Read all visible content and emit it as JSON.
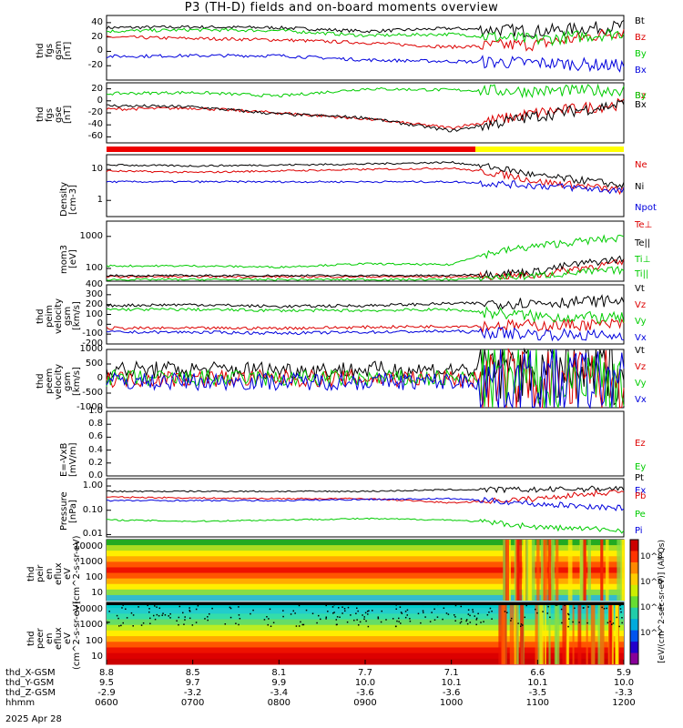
{
  "title": "P3 (TH-D) fields and on-board moments overview",
  "date": "2025 Apr 28",
  "colorbar_label": "[eV/(cm^2-sec-sr-eV)] (All Qs)",
  "colorbar_ticks": [
    "10^8",
    "10^6",
    "10^4",
    "10^2"
  ],
  "chart_data": [
    {
      "type": "line",
      "name": "fgs_gsm",
      "ylabel": "thd fgs gsm [nT]",
      "ylim": [
        -40,
        50
      ],
      "yticks": [
        40,
        20,
        0,
        -20
      ],
      "x": [
        0,
        1,
        2,
        3,
        4,
        5,
        6
      ],
      "series": [
        {
          "name": "Bt",
          "color": "#000000",
          "values": [
            33,
            34,
            33,
            28,
            32,
            28,
            35
          ]
        },
        {
          "name": "Bz",
          "color": "#dd0000",
          "values": [
            20,
            18,
            16,
            12,
            6,
            10,
            28
          ]
        },
        {
          "name": "By",
          "color": "#00cc00",
          "values": [
            28,
            30,
            29,
            22,
            24,
            16,
            26
          ]
        },
        {
          "name": "Bx",
          "color": "#0000dd",
          "values": [
            -7,
            -6,
            -6,
            -12,
            -14,
            -16,
            -20
          ]
        }
      ]
    },
    {
      "type": "line",
      "name": "fgs_gse",
      "ylabel": "thd fgs gse [nT]",
      "ylim": [
        -70,
        30
      ],
      "yticks": [
        20,
        0,
        -20,
        -40,
        -60
      ],
      "series": [
        {
          "name": "Bz",
          "color": "#dd0000",
          "values": [
            -14,
            -12,
            -20,
            -30,
            -45,
            -20,
            -5
          ]
        },
        {
          "name": "By",
          "color": "#00cc00",
          "values": [
            12,
            14,
            8,
            20,
            18,
            16,
            18
          ]
        },
        {
          "name": "Bx",
          "color": "#000000",
          "values": [
            -8,
            -10,
            -22,
            -28,
            -50,
            -25,
            -5
          ]
        }
      ]
    },
    {
      "type": "line",
      "name": "density",
      "ylabel": "Density [cm-3]",
      "ylim": [
        0.3,
        30
      ],
      "scale": "log",
      "yticks": [
        "10",
        "1"
      ],
      "series": [
        {
          "name": "Ne",
          "color": "#dd0000",
          "values": [
            9,
            8,
            9,
            10,
            11,
            4,
            2
          ]
        },
        {
          "name": "Ni",
          "color": "#000000",
          "values": [
            14,
            13,
            14,
            15,
            17,
            6,
            3
          ]
        },
        {
          "name": "Npot",
          "color": "#0000dd",
          "values": [
            4,
            4,
            4,
            4,
            4,
            3,
            2
          ]
        }
      ]
    },
    {
      "type": "line",
      "name": "temperature",
      "ylabel": "mom3 [eV]",
      "ylim": [
        40,
        3000
      ],
      "scale": "log",
      "yticks": [
        "1000",
        "100"
      ],
      "series": [
        {
          "name": "Te⊥",
          "color": "#dd0000",
          "values": [
            55,
            55,
            55,
            55,
            55,
            60,
            150
          ]
        },
        {
          "name": "Te||",
          "color": "#000000",
          "values": [
            60,
            60,
            60,
            60,
            60,
            80,
            200
          ]
        },
        {
          "name": "Ti⊥",
          "color": "#00cc00",
          "values": [
            120,
            120,
            110,
            140,
            130,
            500,
            900
          ]
        },
        {
          "name": "Ti||",
          "color": "#00cc00",
          "values": [
            45,
            45,
            45,
            45,
            45,
            60,
            90
          ]
        }
      ]
    },
    {
      "type": "line",
      "name": "peim_velocity",
      "ylabel": "thd peim velocity gsm [km/s]",
      "ylim": [
        -200,
        400
      ],
      "yticks": [
        400,
        300,
        200,
        100,
        0,
        -100,
        -200
      ],
      "series": [
        {
          "name": "Vt",
          "color": "#000000",
          "values": [
            190,
            200,
            180,
            190,
            210,
            220,
            240
          ]
        },
        {
          "name": "Vz",
          "color": "#dd0000",
          "values": [
            -40,
            -40,
            -40,
            -30,
            -20,
            -10,
            0
          ]
        },
        {
          "name": "Vy",
          "color": "#00cc00",
          "values": [
            150,
            150,
            140,
            140,
            150,
            80,
            60
          ]
        },
        {
          "name": "Vx",
          "color": "#0000dd",
          "values": [
            -80,
            -80,
            -90,
            -80,
            -70,
            -100,
            -120
          ]
        }
      ]
    },
    {
      "type": "line",
      "name": "peem_velocity",
      "ylabel": "thd peem velocity gsm [km/s]",
      "ylim": [
        -1000,
        1000
      ],
      "yticks": [
        1000,
        500,
        0,
        -500,
        -1000
      ],
      "series": [
        {
          "name": "Vt",
          "color": "#000000",
          "values": [
            300,
            300,
            300,
            300,
            300,
            300,
            300
          ]
        },
        {
          "name": "Vz",
          "color": "#dd0000",
          "values": [
            0,
            0,
            0,
            0,
            0,
            -150,
            -100
          ]
        },
        {
          "name": "Vy",
          "color": "#00cc00",
          "values": [
            0,
            0,
            0,
            0,
            0,
            0,
            0
          ]
        },
        {
          "name": "Vx",
          "color": "#0000dd",
          "values": [
            -100,
            -100,
            -100,
            -100,
            -100,
            -100,
            -100
          ]
        }
      ]
    },
    {
      "type": "line",
      "name": "efield",
      "ylabel": "E=-VxB [mV/m]",
      "ylim": [
        0,
        1
      ],
      "yticks": [
        "1.0",
        "0.8",
        "0.6",
        "0.4",
        "0.2",
        "0.0"
      ],
      "series": [
        {
          "name": "Ez",
          "color": "#dd0000",
          "values": []
        },
        {
          "name": "Ey",
          "color": "#00cc00",
          "values": []
        },
        {
          "name": "Ex",
          "color": "#0000dd",
          "values": []
        }
      ]
    },
    {
      "type": "line",
      "name": "pressure",
      "ylabel": "Pressure [nPa]",
      "ylim": [
        0.008,
        2
      ],
      "scale": "log",
      "yticks": [
        "1.00",
        "0.10",
        "0.01"
      ],
      "series": [
        {
          "name": "Pt",
          "color": "#000000",
          "values": [
            0.6,
            0.6,
            0.6,
            0.6,
            0.7,
            0.7,
            0.8
          ]
        },
        {
          "name": "Pb",
          "color": "#dd0000",
          "values": [
            0.35,
            0.32,
            0.3,
            0.3,
            0.2,
            0.3,
            0.6
          ]
        },
        {
          "name": "Pe",
          "color": "#00cc00",
          "values": [
            0.04,
            0.035,
            0.04,
            0.045,
            0.04,
            0.02,
            0.015
          ]
        },
        {
          "name": "Pi",
          "color": "#0000dd",
          "values": [
            0.25,
            0.25,
            0.25,
            0.28,
            0.3,
            0.18,
            0.12
          ]
        }
      ]
    },
    {
      "type": "heatmap",
      "name": "peir_spectrogram",
      "ylabel": "thd peir en eflux eV (cm^2-s-sr-eV)",
      "yticks": [
        "10000",
        "1000",
        "100",
        "10"
      ]
    },
    {
      "type": "heatmap",
      "name": "peer_spectrogram",
      "ylabel": "thd peer en eflux eV (cm^2-s-sr-eV)",
      "yticks": [
        "10000",
        "1000",
        "100",
        "10"
      ]
    }
  ],
  "xaxis": {
    "rows": [
      {
        "label": "thd_X-GSM",
        "values": [
          "8.8",
          "8.5",
          "8.1",
          "7.7",
          "7.1",
          "6.6",
          "5.9"
        ]
      },
      {
        "label": "thd_Y-GSM",
        "values": [
          "9.5",
          "9.7",
          "9.9",
          "10.0",
          "10.1",
          "10.1",
          "10.0"
        ]
      },
      {
        "label": "thd_Z-GSM",
        "values": [
          "-2.9",
          "-3.2",
          "-3.4",
          "-3.6",
          "-3.6",
          "-3.5",
          "-3.3"
        ]
      },
      {
        "label": "hhmm",
        "values": [
          "0600",
          "0700",
          "0800",
          "0900",
          "1000",
          "1100",
          "1200"
        ]
      }
    ]
  }
}
